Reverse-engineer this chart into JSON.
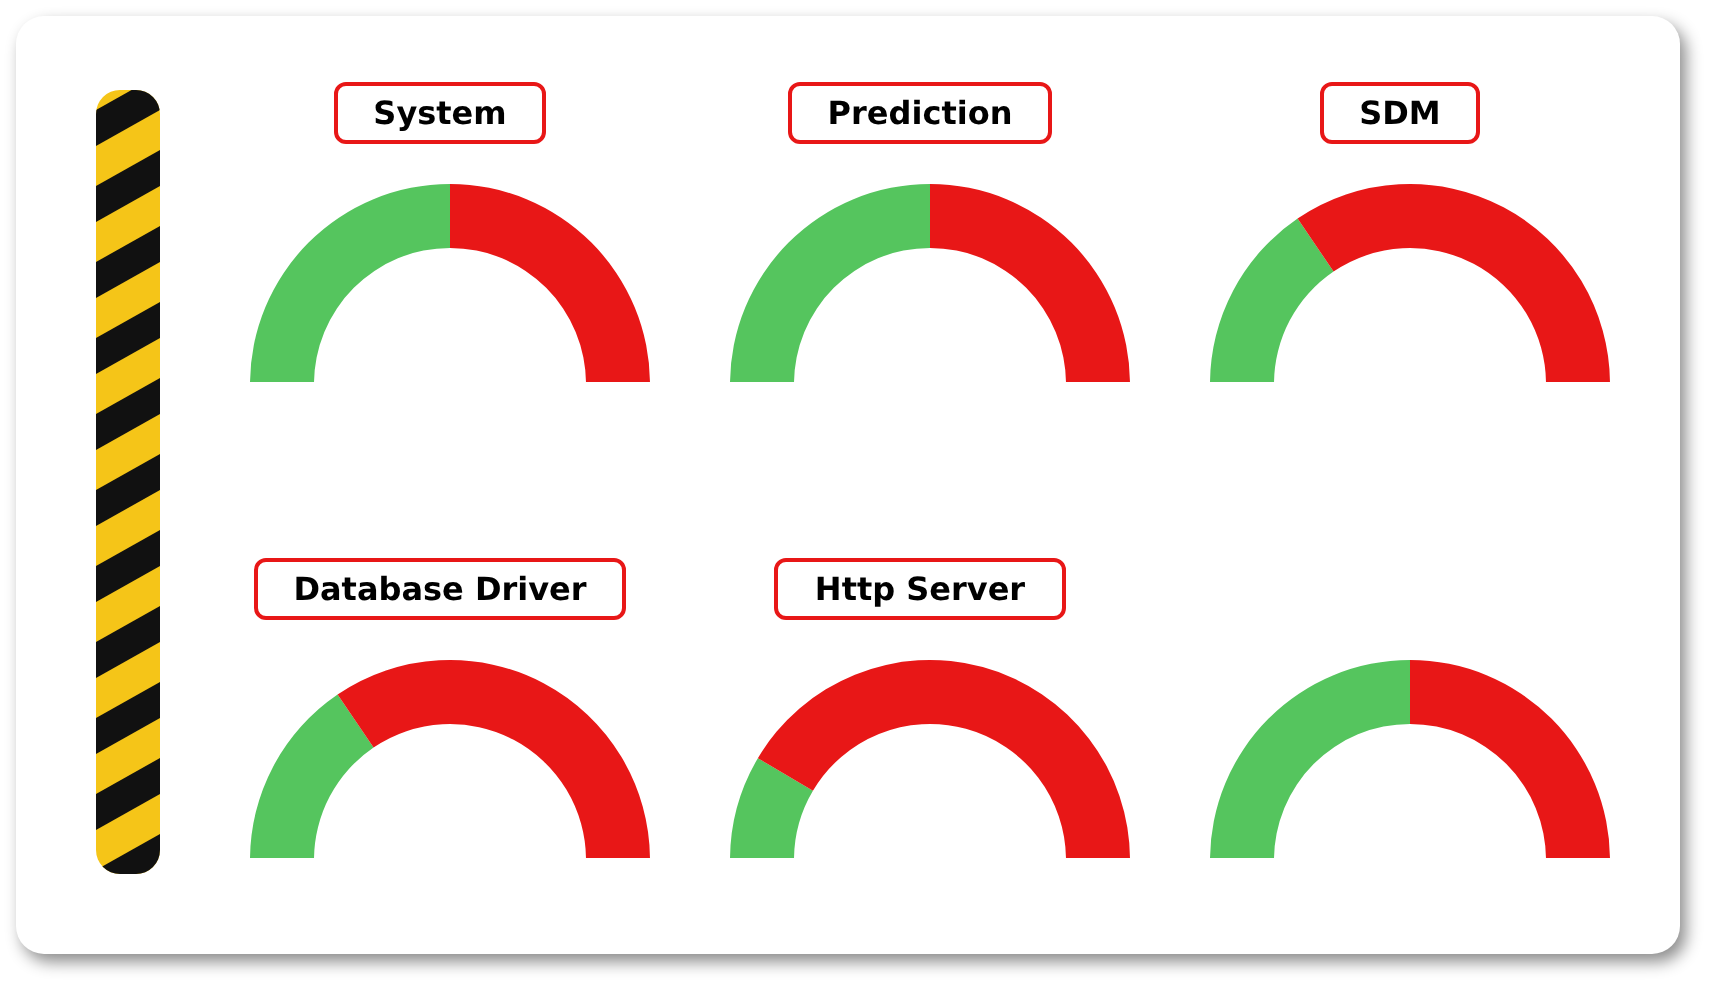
{
  "chart_data": [
    {
      "type": "donut",
      "title": "System",
      "categories": [
        null,
        null
      ],
      "values": [
        50,
        50
      ],
      "colors": [
        "#55c55e",
        "#e81717"
      ]
    },
    {
      "type": "donut",
      "title": "Prediction",
      "categories": [
        null,
        null
      ],
      "values": [
        50,
        50
      ],
      "colors": [
        "#55c55e",
        "#e81717"
      ]
    },
    {
      "type": "donut",
      "title": "SDM",
      "categories": [
        null,
        null
      ],
      "values": [
        31,
        69
      ],
      "colors": [
        "#55c55e",
        "#e81717"
      ]
    },
    {
      "type": "donut",
      "title": "Database Driver",
      "categories": [
        null,
        null
      ],
      "values": [
        31,
        69
      ],
      "colors": [
        "#55c55e",
        "#e81717"
      ]
    },
    {
      "type": "donut",
      "title": "Http Server",
      "categories": [
        null,
        null
      ],
      "values": [
        17,
        83
      ],
      "colors": [
        "#55c55e",
        "#e81717"
      ]
    },
    {
      "type": "donut",
      "categories": [
        null,
        null
      ],
      "values": [
        50,
        50
      ],
      "colors": [
        "#55c55e",
        "#e81717"
      ]
    }
  ]
}
